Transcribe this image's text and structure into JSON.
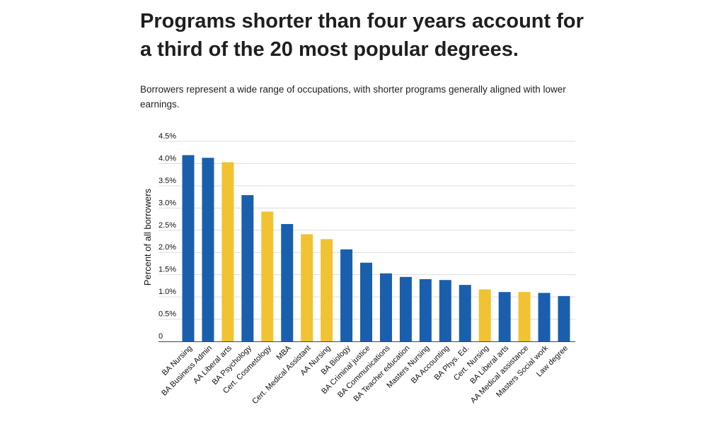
{
  "header": {
    "title": "Programs shorter than four years account for a third of the 20 most popular degrees.",
    "subtitle": "Borrowers represent a wide range of occupations, with shorter programs generally aligned with lower earnings."
  },
  "colors": {
    "four_year_or_more": "#1a5fae",
    "shorter_program": "#f1c232",
    "grid": "#dddddd",
    "axis": "#444444"
  },
  "chart_data": {
    "type": "bar",
    "title": "Programs shorter than four years account for a third of the 20 most popular degrees.",
    "ylabel": "Percent of all borrowers",
    "xlabel": "",
    "ylim": [
      0,
      4.5
    ],
    "yticks": [
      0,
      0.5,
      1.0,
      1.5,
      2.0,
      2.5,
      3.0,
      3.5,
      4.0,
      4.5
    ],
    "ytick_labels": [
      "0",
      "0.5%",
      "1.0%",
      "1.5%",
      "2.0%",
      "2.5%",
      "3.0%",
      "3.5%",
      "4.0%",
      "4.5%"
    ],
    "grid": true,
    "categories": [
      "BA Nursing",
      "BA Business Admin",
      "AA Liberal arts",
      "BA Psychology",
      "Cert. Cosmetology",
      "MBA",
      "Cert. Medical Assistant",
      "AA Nursing",
      "BA Biology",
      "BA Criminal justice",
      "BA Communications",
      "BA Teacher education",
      "Masters Nursing",
      "BA Accounting",
      "BA Phys. Ed.",
      "Cert. Nursing",
      "BA Liberal arts",
      "AA Medical assistance",
      "Masters Social work",
      "Law degree"
    ],
    "values": [
      4.19,
      4.13,
      4.03,
      3.29,
      2.92,
      2.64,
      2.41,
      2.3,
      2.07,
      1.77,
      1.53,
      1.45,
      1.4,
      1.38,
      1.27,
      1.17,
      1.11,
      1.11,
      1.09,
      1.02
    ],
    "shorter_than_four_years": [
      false,
      false,
      true,
      false,
      true,
      false,
      true,
      true,
      false,
      false,
      false,
      false,
      false,
      false,
      false,
      true,
      false,
      true,
      false,
      false
    ]
  }
}
